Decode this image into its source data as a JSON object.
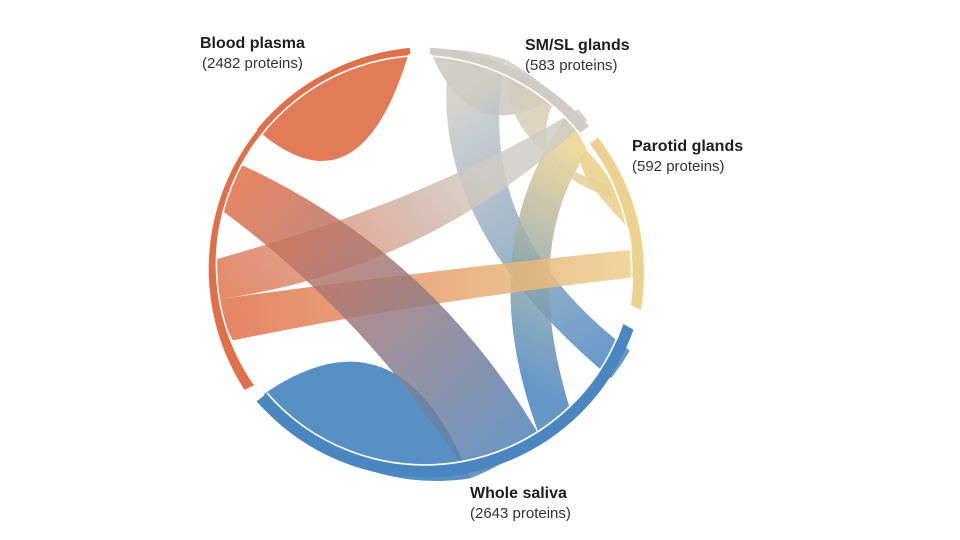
{
  "diagram": {
    "type": "chord",
    "groups": [
      {
        "id": "blood",
        "name": "Blood plasma",
        "count_label": "(2482 proteins)",
        "proteins": 2482,
        "color": "#e0704a"
      },
      {
        "id": "smsl",
        "name": "SM/SL glands",
        "count_label": "(583 proteins)",
        "proteins": 583,
        "color": "#cfccc6"
      },
      {
        "id": "parotid",
        "name": "Parotid glands",
        "count_label": "(592 proteins)",
        "proteins": 592,
        "color": "#ecd28e"
      },
      {
        "id": "whole",
        "name": "Whole saliva",
        "count_label": "(2643 proteins)",
        "proteins": 2643,
        "color": "#4a86bf"
      }
    ],
    "links": [
      {
        "from": "blood",
        "to": "smsl"
      },
      {
        "from": "blood",
        "to": "parotid"
      },
      {
        "from": "blood",
        "to": "whole"
      },
      {
        "from": "smsl",
        "to": "whole"
      },
      {
        "from": "smsl",
        "to": "parotid"
      },
      {
        "from": "parotid",
        "to": "whole"
      }
    ]
  }
}
